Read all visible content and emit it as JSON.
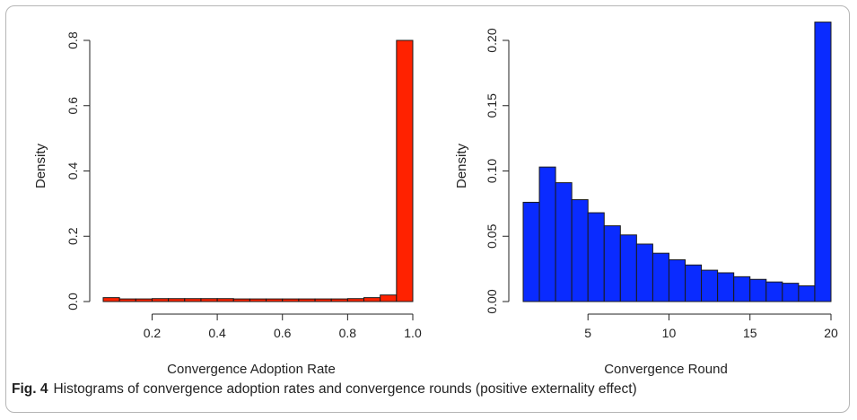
{
  "caption": {
    "label": "Fig. 4",
    "text": "Histograms of convergence adoption rates and convergence rounds (positive externality effect)"
  },
  "colors": {
    "left_bars": "#ff2200",
    "right_bars": "#0a2bff",
    "bar_stroke": "#1a1a1a"
  },
  "chart_data": [
    {
      "type": "bar",
      "variant": "histogram",
      "title": "",
      "xlabel": "Convergence Adoption Rate",
      "ylabel": "Density",
      "xlim": [
        0.05,
        1.0
      ],
      "ylim": [
        0,
        0.8
      ],
      "xticks": [
        "0.2",
        "0.4",
        "0.6",
        "0.8",
        "1.0"
      ],
      "yticks": [
        "0.0",
        "0.2",
        "0.4",
        "0.6",
        "0.8"
      ],
      "bins": [
        {
          "x0": 0.05,
          "x1": 0.1,
          "y": 0.012
        },
        {
          "x0": 0.1,
          "x1": 0.15,
          "y": 0.008
        },
        {
          "x0": 0.15,
          "x1": 0.2,
          "y": 0.008
        },
        {
          "x0": 0.2,
          "x1": 0.25,
          "y": 0.009
        },
        {
          "x0": 0.25,
          "x1": 0.3,
          "y": 0.009
        },
        {
          "x0": 0.3,
          "x1": 0.35,
          "y": 0.009
        },
        {
          "x0": 0.35,
          "x1": 0.4,
          "y": 0.009
        },
        {
          "x0": 0.4,
          "x1": 0.45,
          "y": 0.009
        },
        {
          "x0": 0.45,
          "x1": 0.5,
          "y": 0.008
        },
        {
          "x0": 0.5,
          "x1": 0.55,
          "y": 0.008
        },
        {
          "x0": 0.55,
          "x1": 0.6,
          "y": 0.008
        },
        {
          "x0": 0.6,
          "x1": 0.65,
          "y": 0.008
        },
        {
          "x0": 0.65,
          "x1": 0.7,
          "y": 0.008
        },
        {
          "x0": 0.7,
          "x1": 0.75,
          "y": 0.008
        },
        {
          "x0": 0.75,
          "x1": 0.8,
          "y": 0.008
        },
        {
          "x0": 0.8,
          "x1": 0.85,
          "y": 0.009
        },
        {
          "x0": 0.85,
          "x1": 0.9,
          "y": 0.012
        },
        {
          "x0": 0.9,
          "x1": 0.95,
          "y": 0.02
        },
        {
          "x0": 0.95,
          "x1": 1.0,
          "y": 0.8
        }
      ]
    },
    {
      "type": "bar",
      "variant": "histogram",
      "title": "",
      "xlabel": "Convergence Round",
      "ylabel": "Density",
      "xlim": [
        1,
        20
      ],
      "ylim": [
        0,
        0.2
      ],
      "xticks": [
        "5",
        "10",
        "15",
        "20"
      ],
      "yticks": [
        "0.00",
        "0.05",
        "0.10",
        "0.15",
        "0.20"
      ],
      "bins": [
        {
          "x0": 1,
          "x1": 2,
          "y": 0.076
        },
        {
          "x0": 2,
          "x1": 3,
          "y": 0.103
        },
        {
          "x0": 3,
          "x1": 4,
          "y": 0.091
        },
        {
          "x0": 4,
          "x1": 5,
          "y": 0.078
        },
        {
          "x0": 5,
          "x1": 6,
          "y": 0.068
        },
        {
          "x0": 6,
          "x1": 7,
          "y": 0.058
        },
        {
          "x0": 7,
          "x1": 8,
          "y": 0.051
        },
        {
          "x0": 8,
          "x1": 9,
          "y": 0.044
        },
        {
          "x0": 9,
          "x1": 10,
          "y": 0.037
        },
        {
          "x0": 10,
          "x1": 11,
          "y": 0.032
        },
        {
          "x0": 11,
          "x1": 12,
          "y": 0.028
        },
        {
          "x0": 12,
          "x1": 13,
          "y": 0.024
        },
        {
          "x0": 13,
          "x1": 14,
          "y": 0.022
        },
        {
          "x0": 14,
          "x1": 15,
          "y": 0.019
        },
        {
          "x0": 15,
          "x1": 16,
          "y": 0.017
        },
        {
          "x0": 16,
          "x1": 17,
          "y": 0.015
        },
        {
          "x0": 17,
          "x1": 18,
          "y": 0.014
        },
        {
          "x0": 18,
          "x1": 19,
          "y": 0.012
        },
        {
          "x0": 19,
          "x1": 20,
          "y": 0.214
        }
      ]
    }
  ]
}
